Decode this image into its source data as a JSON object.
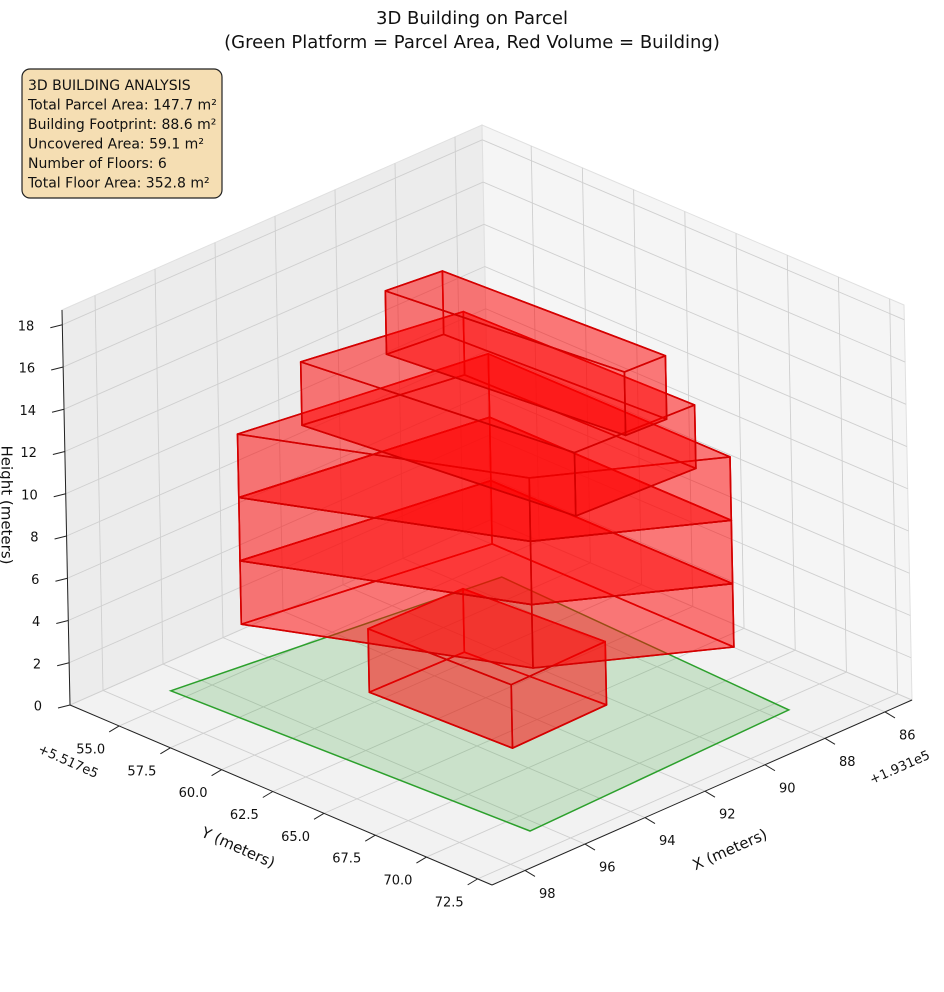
{
  "chart_data": {
    "type": "building3d",
    "title": "3D Building on Parcel",
    "subtitle": "(Green Platform = Parcel Area, Red Volume = Building)",
    "info_box": [
      "3D BUILDING ANALYSIS",
      "Total Parcel Area: 147.7 m²",
      "Building Footprint: 88.6 m²",
      "Uncovered Area: 59.1 m²",
      "Number of Floors: 6",
      "Total Floor Area: 352.8 m²"
    ],
    "xlabel": "X (meters)",
    "ylabel": "Y (meters)",
    "zlabel": "Height (meters)",
    "x_offset_label": "+1.931e5",
    "y_offset_label": "+5.517e5",
    "xlim": [
      85.1,
      99.1
    ],
    "ylim": [
      52.6,
      73.2
    ],
    "zlim": [
      0,
      18.7
    ],
    "xticks": [
      86,
      88,
      90,
      92,
      94,
      96,
      98
    ],
    "yticks": [
      {
        "value": 55,
        "label": "55.0"
      },
      {
        "value": 57.5,
        "label": "57.5"
      },
      {
        "value": 60,
        "label": "60.0"
      },
      {
        "value": 62.5,
        "label": "62.5"
      },
      {
        "value": 65,
        "label": "65.0"
      },
      {
        "value": 67.5,
        "label": "67.5"
      },
      {
        "value": 70,
        "label": "70.0"
      },
      {
        "value": 72.5,
        "label": "72.5"
      }
    ],
    "zticks": [
      0,
      2,
      4,
      6,
      8,
      10,
      12,
      14,
      16,
      18
    ],
    "grid": true,
    "parcel": {
      "color": "#2ca02c",
      "footprint": [
        [
          96.9,
          54.3
        ],
        [
          87.1,
          56.1
        ],
        [
          87.5,
          70.7
        ],
        [
          96.4,
          71.1
        ]
      ]
    },
    "building_color": "#ff0000",
    "boxes": [
      {
        "footprint": [
          [
            93.7,
            59.3
          ],
          [
            90.6,
            59.4
          ],
          [
            90.3,
            65.9
          ],
          [
            93.5,
            66.0
          ]
        ],
        "z": [
          0,
          3
        ]
      },
      {
        "footprint": [
          [
            95.6,
            55.9
          ],
          [
            88.4,
            57.6
          ],
          [
            88.4,
            69.4
          ],
          [
            92.5,
            65.6
          ]
        ],
        "z": [
          3,
          6
        ]
      },
      {
        "footprint": [
          [
            95.6,
            55.9
          ],
          [
            88.4,
            57.6
          ],
          [
            88.4,
            69.4
          ],
          [
            92.5,
            65.6
          ]
        ],
        "z": [
          6,
          9
        ]
      },
      {
        "footprint": [
          [
            95.6,
            55.9
          ],
          [
            88.4,
            57.6
          ],
          [
            88.4,
            69.4
          ],
          [
            92.5,
            65.6
          ]
        ],
        "z": [
          9,
          12
        ]
      },
      {
        "footprint": [
          [
            94.2,
            57.0
          ],
          [
            89.6,
            58.2
          ],
          [
            89.4,
            69.2
          ],
          [
            93.2,
            68.9
          ]
        ],
        "z": [
          12,
          15
        ]
      },
      {
        "footprint": [
          [
            92.5,
            58.7
          ],
          [
            90.8,
            59.0
          ],
          [
            90.4,
            69.3
          ],
          [
            91.7,
            69.2
          ]
        ],
        "z": [
          15,
          18
        ]
      }
    ]
  }
}
